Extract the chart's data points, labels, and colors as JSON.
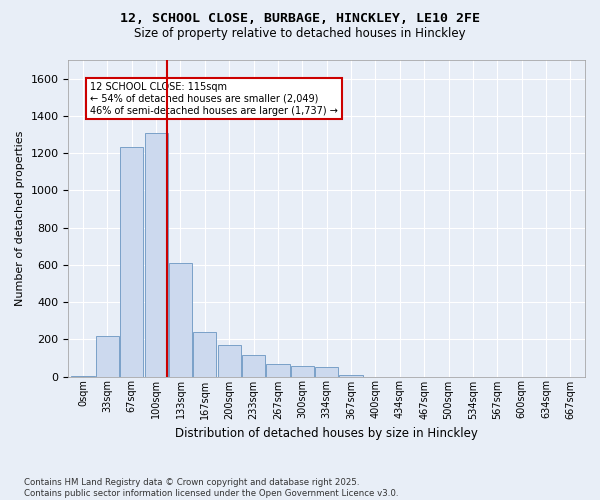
{
  "title1": "12, SCHOOL CLOSE, BURBAGE, HINCKLEY, LE10 2FE",
  "title2": "Size of property relative to detached houses in Hinckley",
  "xlabel": "Distribution of detached houses by size in Hinckley",
  "ylabel": "Number of detached properties",
  "footnote": "Contains HM Land Registry data © Crown copyright and database right 2025.\nContains public sector information licensed under the Open Government Licence v3.0.",
  "bar_labels": [
    "0sqm",
    "33sqm",
    "67sqm",
    "100sqm",
    "133sqm",
    "167sqm",
    "200sqm",
    "233sqm",
    "267sqm",
    "300sqm",
    "334sqm",
    "367sqm",
    "400sqm",
    "434sqm",
    "467sqm",
    "500sqm",
    "534sqm",
    "567sqm",
    "600sqm",
    "634sqm",
    "667sqm"
  ],
  "bar_values": [
    5,
    215,
    1235,
    1310,
    610,
    240,
    170,
    115,
    65,
    55,
    50,
    10,
    0,
    0,
    0,
    0,
    0,
    0,
    0,
    0,
    0
  ],
  "bar_color": "#ccd9ee",
  "bar_edgecolor": "#7aa0c8",
  "vline_x": 3.5,
  "vline_color": "#cc0000",
  "annotation_text": "12 SCHOOL CLOSE: 115sqm\n← 54% of detached houses are smaller (2,049)\n46% of semi-detached houses are larger (1,737) →",
  "annotation_box_color": "#cc0000",
  "ylim": [
    0,
    1700
  ],
  "yticks": [
    0,
    200,
    400,
    600,
    800,
    1000,
    1200,
    1400,
    1600
  ],
  "bg_color": "#e8eef7",
  "plot_bg_color": "#e8eef7",
  "grid_color": "#ffffff"
}
